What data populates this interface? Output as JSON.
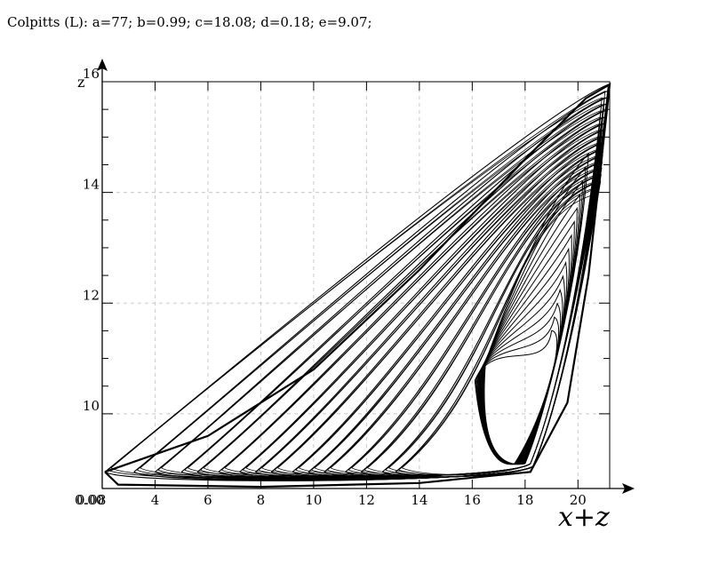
{
  "title": "Colpitts (L): a=77; b=0.99; c=18.08; d=0.18; e=9.07;",
  "chart_data": {
    "type": "line",
    "title": "Colpitts (L): a=77; b=0.99; c=18.08; d=0.18; e=9.07;",
    "xlabel": "x+z",
    "ylabel": "z",
    "xlim": [
      2.0,
      21.2
    ],
    "ylim": [
      8.65,
      16.0
    ],
    "x_ticks": [
      4,
      6,
      8,
      10,
      12,
      14,
      16,
      18,
      20
    ],
    "y_ticks": [
      10,
      12,
      14,
      16
    ],
    "origin_labels": [
      "0.00",
      "0.08"
    ],
    "grid": true,
    "series": [
      {
        "description": "chaotic attractor trajectory",
        "outer_loop": [
          [
            2.1,
            8.95
          ],
          [
            2.6,
            8.72
          ],
          [
            8,
            8.68
          ],
          [
            14,
            8.75
          ],
          [
            18.2,
            8.95
          ],
          [
            19.6,
            10.2
          ],
          [
            20.4,
            12.5
          ],
          [
            21.1,
            15.5
          ],
          [
            21.2,
            15.95
          ],
          [
            20.3,
            15.7
          ],
          [
            18,
            14.6
          ],
          [
            14,
            12.6
          ],
          [
            10,
            10.8
          ],
          [
            6,
            9.6
          ],
          [
            2.1,
            8.95
          ]
        ],
        "loop_start_x": [
          2.1,
          3.2,
          4.0,
          5.0,
          5.6,
          6.4,
          7.2,
          7.8,
          8.4,
          9.2,
          9.8,
          10.4,
          11.2,
          11.8,
          12.6,
          13.1
        ],
        "inner_region": [
          [
            16.2,
            10.7
          ],
          [
            16.6,
            8.95
          ],
          [
            17.6,
            9.5
          ],
          [
            18.4,
            10.4
          ],
          [
            19.3,
            11.8
          ],
          [
            20.5,
            14.5
          ],
          [
            19.0,
            12.3
          ],
          [
            17.5,
            11.3
          ],
          [
            16.2,
            10.7
          ]
        ]
      }
    ]
  }
}
